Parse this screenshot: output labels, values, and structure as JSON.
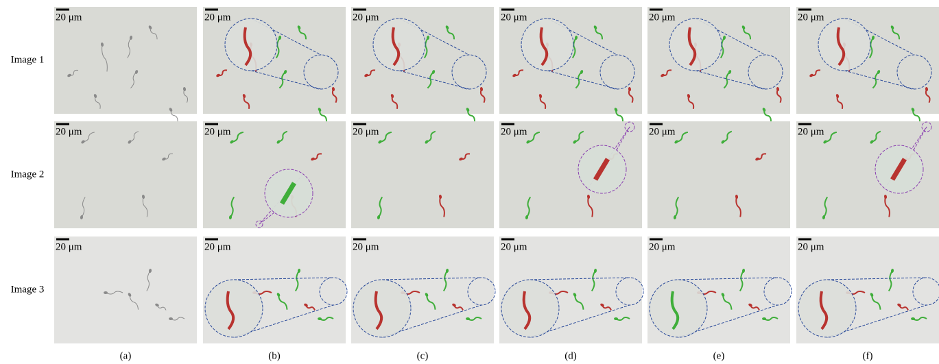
{
  "rows": [
    {
      "label": "Image 1"
    },
    {
      "label": "Image 2"
    },
    {
      "label": "Image 3"
    }
  ],
  "columns": [
    {
      "label": "(a)"
    },
    {
      "label": "(b)"
    },
    {
      "label": "(c)"
    },
    {
      "label": "(d)"
    },
    {
      "label": "(e)"
    },
    {
      "label": "(f)"
    }
  ],
  "scale_bar": "20 μm"
}
